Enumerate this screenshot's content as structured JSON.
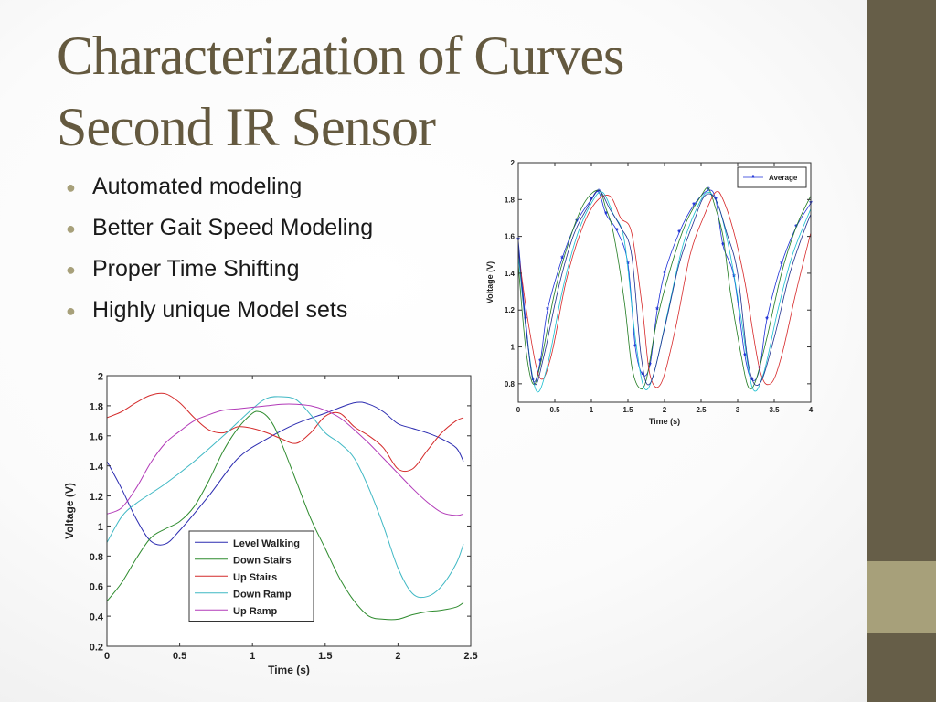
{
  "slide": {
    "title_lines": [
      "Characterization of Curves",
      "Second IR Sensor"
    ],
    "bullets": [
      "Automated modeling",
      "Better Gait Speed Modeling",
      "Proper Time Shifting",
      "Highly unique Model sets"
    ],
    "colors": {
      "sidebar": "#665e48",
      "sidebar_accent": "#a7a07a",
      "title": "#64593f",
      "bullet_dot": "#a7a07a"
    },
    "bullet_icon": "bullet-dot-icon"
  },
  "chart_data": [
    {
      "type": "line",
      "xlabel": "Time (s)",
      "ylabel": "Voltage (V)",
      "xlim": [
        0,
        4
      ],
      "ylim": [
        0.7,
        2
      ],
      "xticks": [
        0,
        0.5,
        1,
        1.5,
        2,
        2.5,
        3,
        3.5,
        4
      ],
      "xtick_labels": [
        "0",
        "0.5",
        "1",
        "1.5",
        "2",
        "2.5",
        "3",
        "3.5",
        "4"
      ],
      "yticks": [
        0.8,
        1,
        1.2,
        1.4,
        1.6,
        1.8,
        2
      ],
      "ytick_labels": [
        "0.8",
        "1",
        "1.2",
        "1.4",
        "1.6",
        "1.8",
        "2"
      ],
      "legend": {
        "position": "top-right",
        "entries": [
          "Average"
        ]
      },
      "series": [
        {
          "name": "Average",
          "marker": "*",
          "color": "#1b2fd6",
          "x": [
            0,
            0.1,
            0.2,
            0.3,
            0.4,
            0.6,
            0.8,
            1.0,
            1.1,
            1.2,
            1.35,
            1.5,
            1.6,
            1.7,
            1.8,
            1.9,
            2.0,
            2.2,
            2.4,
            2.6,
            2.7,
            2.8,
            2.95,
            3.1,
            3.2,
            3.3,
            3.4,
            3.6,
            3.8,
            4.0
          ],
          "y": [
            1.58,
            1.15,
            0.82,
            0.92,
            1.2,
            1.48,
            1.68,
            1.8,
            1.84,
            1.72,
            1.63,
            1.45,
            1.0,
            0.85,
            0.9,
            1.2,
            1.4,
            1.62,
            1.77,
            1.85,
            1.8,
            1.55,
            1.38,
            0.95,
            0.82,
            0.88,
            1.15,
            1.45,
            1.65,
            1.78
          ]
        },
        {
          "name": "",
          "color": "#1f7a1f",
          "x": [
            0,
            0.1,
            0.2,
            0.3,
            0.5,
            0.7,
            0.9,
            1.1,
            1.2,
            1.3,
            1.45,
            1.55,
            1.65,
            1.75,
            1.9,
            2.1,
            2.3,
            2.5,
            2.6,
            2.7,
            2.8,
            2.9,
            3.05,
            3.15,
            3.25,
            3.4,
            3.6,
            3.8,
            4.0
          ],
          "y": [
            1.45,
            1.0,
            0.8,
            0.9,
            1.3,
            1.58,
            1.78,
            1.85,
            1.75,
            1.62,
            1.25,
            0.9,
            0.78,
            0.82,
            1.15,
            1.45,
            1.68,
            1.82,
            1.86,
            1.75,
            1.6,
            1.3,
            0.95,
            0.78,
            0.82,
            1.05,
            1.4,
            1.65,
            1.82
          ]
        },
        {
          "name": "",
          "color": "#d62728",
          "x": [
            0,
            0.15,
            0.3,
            0.45,
            0.65,
            0.85,
            1.05,
            1.25,
            1.4,
            1.55,
            1.7,
            1.8,
            1.95,
            2.15,
            2.35,
            2.55,
            2.7,
            2.8,
            2.95,
            3.1,
            3.3,
            3.45,
            3.6,
            3.8,
            4.0
          ],
          "y": [
            1.52,
            1.1,
            0.83,
            0.95,
            1.35,
            1.62,
            1.78,
            1.82,
            1.7,
            1.62,
            1.2,
            0.85,
            0.8,
            1.1,
            1.5,
            1.72,
            1.84,
            1.8,
            1.62,
            1.35,
            0.88,
            0.8,
            0.95,
            1.3,
            1.62
          ]
        },
        {
          "name": "",
          "color": "#17becf",
          "x": [
            0,
            0.12,
            0.25,
            0.4,
            0.6,
            0.8,
            1.0,
            1.15,
            1.3,
            1.45,
            1.6,
            1.72,
            1.85,
            2.05,
            2.25,
            2.45,
            2.6,
            2.75,
            2.9,
            3.05,
            3.2,
            3.35,
            3.55,
            3.75,
            4.0
          ],
          "y": [
            1.5,
            1.05,
            0.76,
            0.9,
            1.3,
            1.6,
            1.78,
            1.84,
            1.72,
            1.58,
            1.05,
            0.78,
            0.85,
            1.2,
            1.55,
            1.76,
            1.84,
            1.75,
            1.5,
            1.15,
            0.78,
            0.85,
            1.2,
            1.5,
            1.75
          ]
        },
        {
          "name": "",
          "color": "#1f2f8f",
          "x": [
            0,
            0.1,
            0.22,
            0.35,
            0.55,
            0.75,
            0.95,
            1.1,
            1.25,
            1.4,
            1.55,
            1.68,
            1.8,
            2.0,
            2.2,
            2.4,
            2.55,
            2.7,
            2.85,
            3.0,
            3.15,
            3.3,
            3.5,
            3.7,
            3.9,
            4.0
          ],
          "y": [
            1.55,
            1.12,
            0.8,
            0.95,
            1.32,
            1.6,
            1.76,
            1.85,
            1.75,
            1.65,
            1.5,
            0.95,
            0.8,
            1.1,
            1.45,
            1.68,
            1.82,
            1.8,
            1.62,
            1.4,
            0.9,
            0.8,
            1.05,
            1.38,
            1.62,
            1.72
          ]
        }
      ]
    },
    {
      "type": "line",
      "xlabel": "Time (s)",
      "ylabel": "Voltage (V)",
      "xlim": [
        0,
        2.5
      ],
      "ylim": [
        0.2,
        2
      ],
      "xticks": [
        0,
        0.5,
        1,
        1.5,
        2,
        2.5
      ],
      "xtick_labels": [
        "0",
        "0.5",
        "1",
        "1.5",
        "2",
        "2.5"
      ],
      "yticks": [
        0.2,
        0.4,
        0.6,
        0.8,
        1,
        1.2,
        1.4,
        1.6,
        1.8,
        2
      ],
      "ytick_labels": [
        "0.2",
        "0.4",
        "0.6",
        "0.8",
        "1",
        "1.2",
        "1.4",
        "1.6",
        "1.8",
        "2"
      ],
      "legend": {
        "position": "center",
        "entries": [
          "Level Walking",
          "Down Stairs",
          "Up Stairs",
          "Down Ramp",
          "Up Ramp"
        ]
      },
      "series": [
        {
          "name": "Level Walking",
          "color": "#2b2bb0",
          "x": [
            0,
            0.1,
            0.2,
            0.3,
            0.4,
            0.5,
            0.7,
            0.9,
            1.1,
            1.3,
            1.5,
            1.7,
            1.8,
            1.9,
            2.0,
            2.1,
            2.2,
            2.3,
            2.4,
            2.45
          ],
          "y": [
            1.43,
            1.25,
            1.05,
            0.9,
            0.88,
            0.97,
            1.2,
            1.45,
            1.58,
            1.68,
            1.75,
            1.82,
            1.81,
            1.76,
            1.68,
            1.65,
            1.62,
            1.58,
            1.52,
            1.43
          ]
        },
        {
          "name": "Down Stairs",
          "color": "#2e8b2e",
          "x": [
            0,
            0.1,
            0.2,
            0.3,
            0.4,
            0.5,
            0.6,
            0.7,
            0.8,
            0.9,
            1.0,
            1.05,
            1.1,
            1.15,
            1.2,
            1.3,
            1.4,
            1.5,
            1.6,
            1.7,
            1.8,
            1.9,
            2.0,
            2.1,
            2.2,
            2.3,
            2.4,
            2.45
          ],
          "y": [
            0.5,
            0.62,
            0.78,
            0.92,
            0.98,
            1.03,
            1.13,
            1.3,
            1.5,
            1.65,
            1.75,
            1.76,
            1.73,
            1.66,
            1.55,
            1.3,
            1.05,
            0.85,
            0.65,
            0.5,
            0.4,
            0.38,
            0.38,
            0.41,
            0.43,
            0.44,
            0.46,
            0.49
          ]
        },
        {
          "name": "Up Stairs",
          "color": "#d42a2a",
          "x": [
            0,
            0.1,
            0.2,
            0.3,
            0.4,
            0.5,
            0.6,
            0.7,
            0.8,
            0.9,
            1.0,
            1.1,
            1.2,
            1.3,
            1.4,
            1.5,
            1.6,
            1.7,
            1.8,
            1.9,
            2.0,
            2.1,
            2.2,
            2.3,
            2.4,
            2.45
          ],
          "y": [
            1.72,
            1.76,
            1.82,
            1.87,
            1.88,
            1.82,
            1.72,
            1.64,
            1.62,
            1.66,
            1.65,
            1.62,
            1.58,
            1.55,
            1.62,
            1.73,
            1.75,
            1.66,
            1.6,
            1.52,
            1.38,
            1.38,
            1.5,
            1.62,
            1.7,
            1.72
          ]
        },
        {
          "name": "Down Ramp",
          "color": "#3fb8c4",
          "x": [
            0,
            0.1,
            0.2,
            0.4,
            0.6,
            0.8,
            1.0,
            1.1,
            1.2,
            1.3,
            1.4,
            1.5,
            1.6,
            1.7,
            1.8,
            1.9,
            2.0,
            2.1,
            2.2,
            2.3,
            2.4,
            2.45
          ],
          "y": [
            0.89,
            1.06,
            1.15,
            1.28,
            1.43,
            1.6,
            1.78,
            1.85,
            1.86,
            1.84,
            1.74,
            1.62,
            1.55,
            1.45,
            1.25,
            1.0,
            0.72,
            0.55,
            0.53,
            0.6,
            0.75,
            0.88
          ]
        },
        {
          "name": "Up Ramp",
          "color": "#b23ab8",
          "x": [
            0,
            0.1,
            0.2,
            0.3,
            0.4,
            0.5,
            0.6,
            0.7,
            0.8,
            0.9,
            1.0,
            1.1,
            1.2,
            1.3,
            1.4,
            1.5,
            1.6,
            1.7,
            1.8,
            1.9,
            2.0,
            2.1,
            2.2,
            2.3,
            2.4,
            2.45
          ],
          "y": [
            1.08,
            1.12,
            1.25,
            1.42,
            1.55,
            1.63,
            1.7,
            1.74,
            1.77,
            1.78,
            1.79,
            1.8,
            1.81,
            1.81,
            1.8,
            1.77,
            1.72,
            1.64,
            1.55,
            1.45,
            1.35,
            1.25,
            1.16,
            1.09,
            1.07,
            1.08
          ]
        }
      ]
    }
  ]
}
